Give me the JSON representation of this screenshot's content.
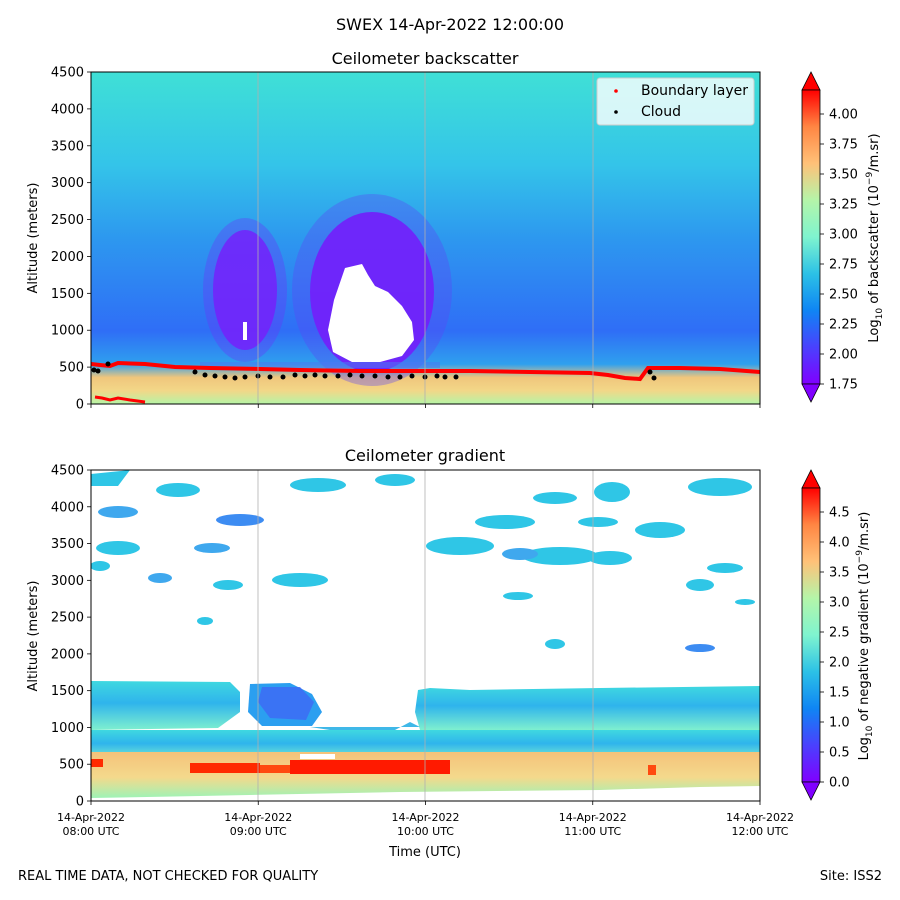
{
  "figure": {
    "suptitle": "SWEX 14-Apr-2022 12:00:00",
    "footer_left": "REAL TIME DATA, NOT CHECKED FOR QUALITY",
    "footer_right": "Site: ISS2"
  },
  "chart_data": [
    {
      "type": "heatmap",
      "title": "Ceilometer backscatter",
      "ylabel": "Altitude (meters)",
      "xlabel": "",
      "ylim": [
        0,
        4500
      ],
      "yticks": [
        0,
        500,
        1000,
        1500,
        2000,
        2500,
        3000,
        3500,
        4000,
        4500
      ],
      "x_tick_labels": [],
      "x_gridlines": true,
      "colorbar": {
        "label": "Log10 of backscatter (10^-9/m.sr)",
        "min": 1.75,
        "max": 4.2,
        "ticks": [
          "1.75",
          "2.00",
          "2.25",
          "2.50",
          "2.75",
          "3.00",
          "3.25",
          "3.50",
          "3.75",
          "4.00"
        ],
        "colormap": "rainbow",
        "extend": "both"
      },
      "legend": {
        "position": "top-right",
        "entries": [
          {
            "label": "Boundary layer",
            "color": "#ff0000"
          },
          {
            "label": "Cloud",
            "color": "#000000"
          }
        ]
      },
      "series": [
        {
          "name": "Boundary layer",
          "x_hours": [
            8.0,
            8.1,
            8.2,
            8.33,
            8.5,
            8.75,
            9.0,
            9.25,
            9.5,
            9.75,
            10.0,
            10.25,
            10.5,
            10.75,
            11.0,
            11.1,
            11.2,
            11.3,
            11.35,
            11.5,
            11.75,
            12.0
          ],
          "altitude_m": [
            540,
            520,
            500,
            540,
            510,
            480,
            470,
            460,
            460,
            450,
            440,
            440,
            440,
            430,
            420,
            380,
            340,
            330,
            480,
            470,
            460,
            410
          ]
        },
        {
          "name": "Cloud",
          "x_hours": [
            8.02,
            8.05,
            8.12,
            8.65,
            8.75,
            8.85,
            8.95,
            9.05,
            9.15,
            9.25,
            9.35,
            9.45,
            9.55,
            9.65,
            9.75,
            9.85,
            9.95,
            10.05,
            10.15,
            11.35
          ],
          "altitude_m": [
            450,
            430,
            500,
            390,
            370,
            350,
            360,
            380,
            370,
            380,
            390,
            380,
            370,
            380,
            360,
            350,
            340,
            360,
            340,
            360
          ]
        }
      ]
    },
    {
      "type": "heatmap",
      "title": "Ceilometer gradient",
      "ylabel": "Altitude (meters)",
      "xlabel": "Time (UTC)",
      "ylim": [
        0,
        4500
      ],
      "yticks": [
        0,
        500,
        1000,
        1500,
        2000,
        2500,
        3000,
        3500,
        4000,
        4500
      ],
      "x_gridlines": true,
      "x_tick_labels": [
        [
          "14-Apr-2022",
          "08:00 UTC"
        ],
        [
          "14-Apr-2022",
          "09:00 UTC"
        ],
        [
          "14-Apr-2022",
          "10:00 UTC"
        ],
        [
          "14-Apr-2022",
          "11:00 UTC"
        ],
        [
          "14-Apr-2022",
          "12:00 UTC"
        ]
      ],
      "x_range_hours": [
        8,
        12
      ],
      "colorbar": {
        "label": "Log10 of negative gradient (10^-9/m.sr)",
        "min": 0.0,
        "max": 4.9,
        "ticks": [
          "0.0",
          "0.5",
          "1.0",
          "1.5",
          "2.0",
          "2.5",
          "3.0",
          "3.5",
          "4.0",
          "4.5"
        ],
        "colormap": "rainbow",
        "extend": "both"
      }
    }
  ]
}
